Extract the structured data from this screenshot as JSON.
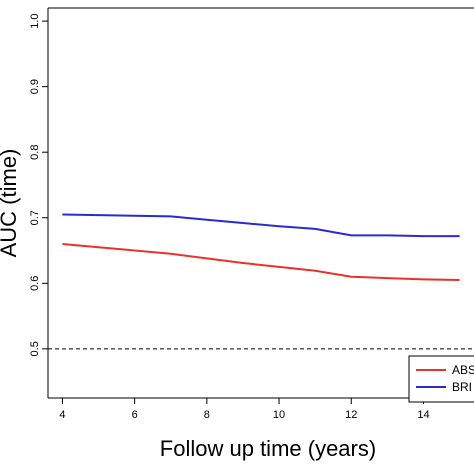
{
  "chart_data": {
    "type": "line",
    "title": "",
    "xlabel": "Follow up time (years)",
    "ylabel": "AUC (time)",
    "xlim": [
      3.6,
      15.4
    ],
    "ylim": [
      0.425,
      1.02
    ],
    "x_ticks": [
      "4",
      "6",
      "8",
      "10",
      "12",
      "14"
    ],
    "y_ticks": [
      "0.5",
      "0.6",
      "0.7",
      "0.8",
      "0.9",
      "1.0"
    ],
    "reference_line": {
      "y": 0.5,
      "style": "dashed"
    },
    "series": [
      {
        "name": "ABS",
        "color": "#e8332a",
        "x": [
          4,
          5,
          6,
          7,
          8,
          9,
          10,
          11,
          12,
          13,
          14,
          15
        ],
        "y": [
          0.66,
          0.655,
          0.65,
          0.645,
          0.638,
          0.631,
          0.625,
          0.619,
          0.61,
          0.608,
          0.606,
          0.605
        ]
      },
      {
        "name": "BRI",
        "color": "#2a2ad0",
        "x": [
          4,
          5,
          6,
          7,
          8,
          9,
          10,
          11,
          12,
          13,
          14,
          15
        ],
        "y": [
          0.705,
          0.704,
          0.703,
          0.702,
          0.697,
          0.692,
          0.687,
          0.683,
          0.673,
          0.673,
          0.672,
          0.672
        ]
      }
    ],
    "legend_position": "bottom-right"
  }
}
